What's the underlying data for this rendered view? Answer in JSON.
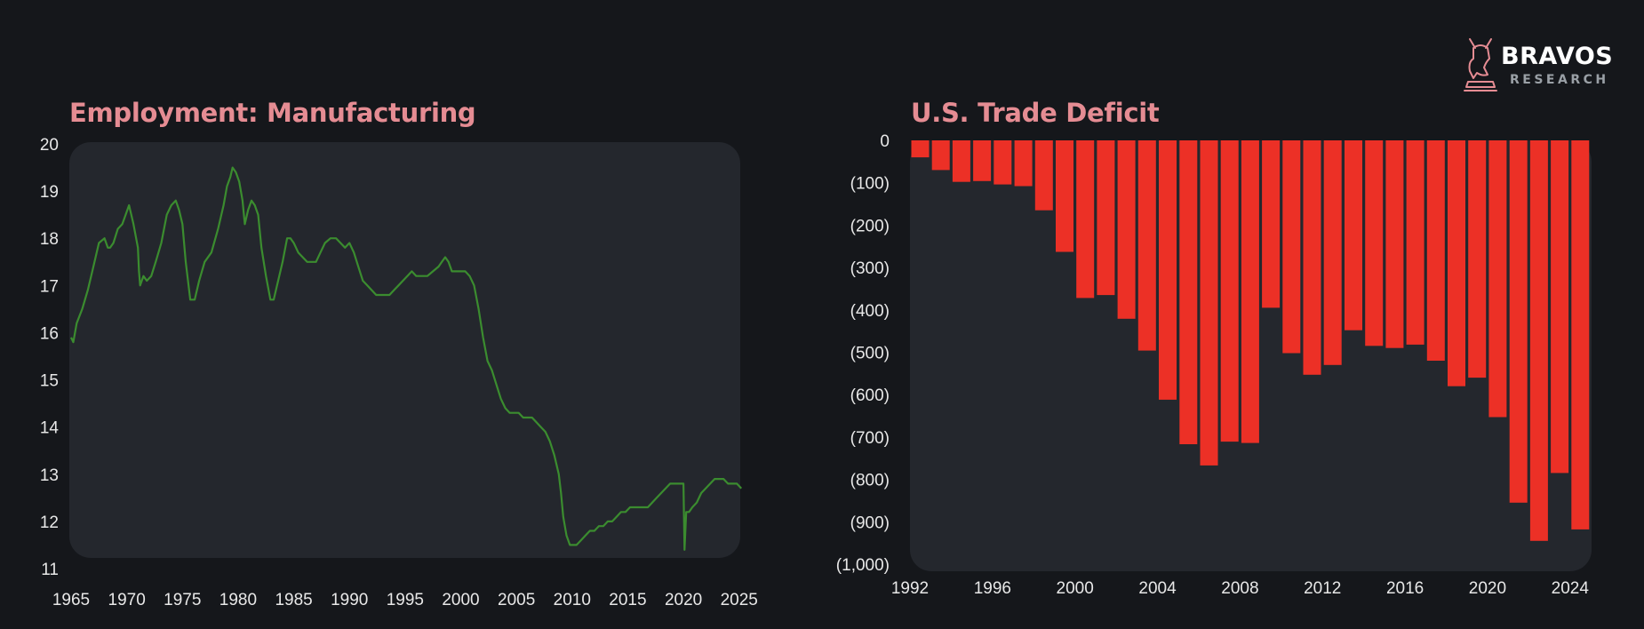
{
  "brand": {
    "name": "BRAVOS",
    "sub": "RESEARCH"
  },
  "colors": {
    "background": "#15171b",
    "panel": "#24272d",
    "title": "#e58c93",
    "line": "#3b8c2f",
    "bar": "#ec3026",
    "tick": "#e8e8e8"
  },
  "chart_data": [
    {
      "type": "line",
      "title": "Employment: Manufacturing",
      "xlabel": "",
      "ylabel": "",
      "xlim": [
        1965,
        2025.5
      ],
      "ylim": [
        11,
        20
      ],
      "x_ticks": [
        "1965",
        "1970",
        "1975",
        "1980",
        "1985",
        "1990",
        "1995",
        "2000",
        "2005",
        "2010",
        "2015",
        "2020",
        "2025"
      ],
      "y_ticks": [
        "11",
        "12",
        "13",
        "14",
        "15",
        "16",
        "17",
        "18",
        "19",
        "20"
      ],
      "series": [
        {
          "x": [
            1965.0,
            1965.2,
            1965.5,
            1966.0,
            1966.5,
            1967.0,
            1967.5,
            1968.0,
            1968.3,
            1968.5,
            1968.8,
            1969.2,
            1969.6,
            1969.9,
            1970.2,
            1970.6,
            1971.0,
            1971.1,
            1971.2,
            1971.5,
            1971.8,
            1972.2,
            1972.6,
            1973.1,
            1973.6,
            1974.0,
            1974.4,
            1974.7,
            1975.0,
            1975.3,
            1975.7,
            1976.1,
            1976.5,
            1977.0,
            1977.6,
            1978.2,
            1978.7,
            1979.0,
            1979.3,
            1979.5,
            1979.8,
            1980.1,
            1980.4,
            1980.6,
            1980.9,
            1981.2,
            1981.5,
            1981.8,
            1982.1,
            1982.5,
            1982.9,
            1983.2,
            1983.6,
            1984.0,
            1984.4,
            1984.7,
            1985.0,
            1985.4,
            1985.8,
            1986.2,
            1986.6,
            1987.0,
            1987.4,
            1987.8,
            1988.3,
            1988.8,
            1989.2,
            1989.6,
            1990.0,
            1990.4,
            1990.8,
            1991.2,
            1991.6,
            1992.0,
            1992.4,
            1992.8,
            1993.2,
            1993.6,
            1994.0,
            1994.4,
            1994.8,
            1995.2,
            1995.6,
            1996.0,
            1996.5,
            1997.0,
            1997.5,
            1998.0,
            1998.3,
            1998.6,
            1998.9,
            1999.2,
            1999.6,
            2000.0,
            2000.4,
            2000.8,
            2001.2,
            2001.6,
            2002.0,
            2002.4,
            2002.8,
            2003.2,
            2003.6,
            2004.0,
            2004.4,
            2004.8,
            2005.2,
            2005.6,
            2006.0,
            2006.4,
            2006.8,
            2007.2,
            2007.6,
            2008.0,
            2008.4,
            2008.8,
            2009.0,
            2009.2,
            2009.5,
            2009.8,
            2010.1,
            2010.4,
            2010.8,
            2011.2,
            2011.6,
            2012.0,
            2012.4,
            2012.8,
            2013.2,
            2013.6,
            2014.0,
            2014.4,
            2014.8,
            2015.2,
            2015.6,
            2016.0,
            2016.4,
            2016.8,
            2017.2,
            2017.6,
            2018.0,
            2018.4,
            2018.8,
            2019.2,
            2019.6,
            2020.0,
            2020.1,
            2020.25,
            2020.35,
            2020.5,
            2020.8,
            2021.2,
            2021.6,
            2022.0,
            2022.4,
            2022.8,
            2023.2,
            2023.6,
            2024.0,
            2024.4,
            2024.8,
            2025.2
          ],
          "y": [
            15.9,
            15.8,
            16.2,
            16.5,
            16.9,
            17.4,
            17.9,
            18.0,
            17.8,
            17.8,
            17.9,
            18.2,
            18.3,
            18.5,
            18.7,
            18.3,
            17.8,
            17.3,
            17.0,
            17.2,
            17.1,
            17.2,
            17.5,
            17.9,
            18.5,
            18.7,
            18.8,
            18.6,
            18.3,
            17.5,
            16.7,
            16.7,
            17.1,
            17.5,
            17.7,
            18.2,
            18.7,
            19.1,
            19.3,
            19.5,
            19.4,
            19.2,
            18.8,
            18.3,
            18.6,
            18.8,
            18.7,
            18.5,
            17.8,
            17.2,
            16.7,
            16.7,
            17.1,
            17.5,
            18.0,
            18.0,
            17.9,
            17.7,
            17.6,
            17.5,
            17.5,
            17.5,
            17.7,
            17.9,
            18.0,
            18.0,
            17.9,
            17.8,
            17.9,
            17.7,
            17.4,
            17.1,
            17.0,
            16.9,
            16.8,
            16.8,
            16.8,
            16.8,
            16.9,
            17.0,
            17.1,
            17.2,
            17.3,
            17.2,
            17.2,
            17.2,
            17.3,
            17.4,
            17.5,
            17.6,
            17.5,
            17.3,
            17.3,
            17.3,
            17.3,
            17.2,
            17.0,
            16.5,
            15.9,
            15.4,
            15.2,
            14.9,
            14.6,
            14.4,
            14.3,
            14.3,
            14.3,
            14.2,
            14.2,
            14.2,
            14.1,
            14.0,
            13.9,
            13.7,
            13.4,
            13.0,
            12.6,
            12.1,
            11.7,
            11.5,
            11.5,
            11.5,
            11.6,
            11.7,
            11.8,
            11.8,
            11.9,
            11.9,
            12.0,
            12.0,
            12.1,
            12.2,
            12.2,
            12.3,
            12.3,
            12.3,
            12.3,
            12.3,
            12.4,
            12.5,
            12.6,
            12.7,
            12.8,
            12.8,
            12.8,
            12.8,
            11.4,
            12.2,
            12.2,
            12.2,
            12.3,
            12.4,
            12.6,
            12.7,
            12.8,
            12.9,
            12.9,
            12.9,
            12.8,
            12.8,
            12.8,
            12.7
          ]
        }
      ]
    },
    {
      "type": "bar",
      "title": "U.S. Trade Deficit",
      "xlabel": "",
      "ylabel": "",
      "xlim": [
        1992,
        2025
      ],
      "ylim": [
        -1000,
        0
      ],
      "x_ticks": [
        "1992",
        "1996",
        "2000",
        "2004",
        "2008",
        "2012",
        "2016",
        "2020",
        "2024"
      ],
      "y_ticks": [
        "0",
        "(100)",
        "(200)",
        "(300)",
        "(400)",
        "(500)",
        "(600)",
        "(700)",
        "(800)",
        "(900)",
        "(1,000)"
      ],
      "categories": [
        "1992",
        "1993",
        "1994",
        "1995",
        "1996",
        "1997",
        "1998",
        "1999",
        "2000",
        "2001",
        "2002",
        "2003",
        "2004",
        "2005",
        "2006",
        "2007",
        "2008",
        "2009",
        "2010",
        "2011",
        "2012",
        "2013",
        "2014",
        "2015",
        "2016",
        "2017",
        "2018",
        "2019",
        "2020",
        "2021",
        "2022",
        "2023",
        "2024"
      ],
      "values": [
        -40,
        -70,
        -98,
        -96,
        -104,
        -108,
        -165,
        -263,
        -372,
        -365,
        -421,
        -496,
        -612,
        -717,
        -767,
        -711,
        -714,
        -395,
        -502,
        -553,
        -530,
        -448,
        -485,
        -490,
        -482,
        -520,
        -580,
        -560,
        -653,
        -855,
        -945,
        -785,
        -918
      ]
    }
  ]
}
